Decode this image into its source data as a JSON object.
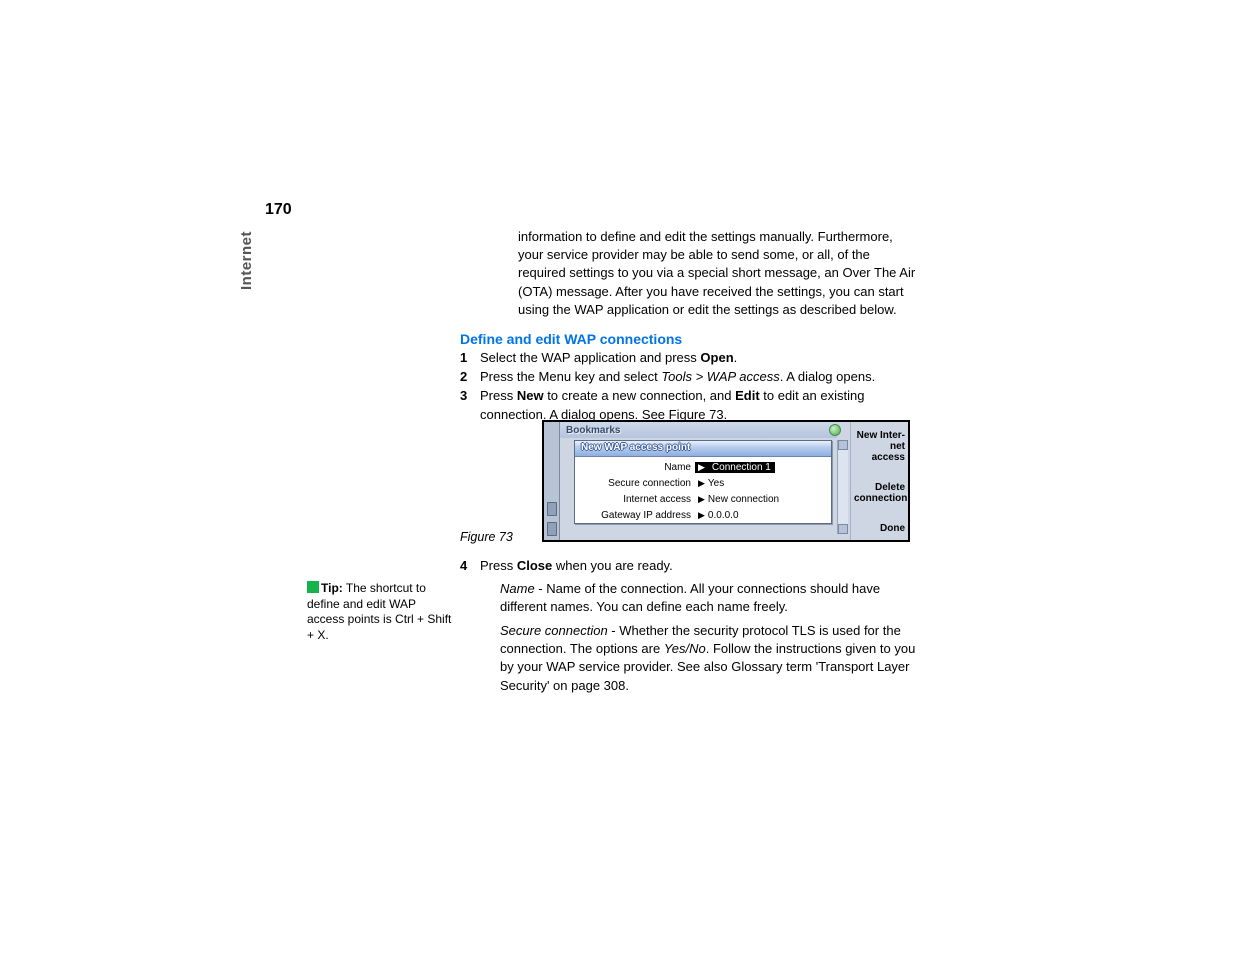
{
  "page_number": "170",
  "side_label": "Internet",
  "intro_paragraph": "information to define and edit the settings manually. Furthermore, your service provider may be able to send some, or all, of the required settings to you via a special short message, an Over The Air (OTA) message. After you have received the settings, you can start using the WAP application or edit the settings as described below.",
  "section_heading": "Define and edit WAP connections",
  "steps": {
    "s1_pre": "Select the WAP application and press ",
    "s1_bold": "Open",
    "s1_post": ".",
    "s2_pre": "Press the Menu key and select ",
    "s2_italic": "Tools > WAP access",
    "s2_post": ". A dialog opens.",
    "s3_pre": "Press ",
    "s3_bold1": "New",
    "s3_mid": " to create a new connection, and ",
    "s3_bold2": "Edit",
    "s3_post": " to edit an existing connection. A dialog opens. See Figure 73.",
    "s4_pre": "Press ",
    "s4_bold": "Close",
    "s4_post": " when you are ready."
  },
  "figure": {
    "caption": "Figure 73",
    "window_title": "Bookmarks",
    "dialog_title": "New WAP access point",
    "rows": [
      {
        "label": "Name",
        "value": "Connection 1",
        "selected": true
      },
      {
        "label": "Secure connection",
        "value": "Yes",
        "selected": false
      },
      {
        "label": "Internet access",
        "value": "New connection",
        "selected": false
      },
      {
        "label": "Gateway IP address",
        "value": "0.0.0.0",
        "selected": false
      }
    ],
    "buttons": {
      "b1": "New Inter-\nnet access",
      "b1_l1": "New Inter-",
      "b1_l2": "net access",
      "b2_l1": "Delete",
      "b2_l2": "connection",
      "b3": "Done"
    }
  },
  "defs": {
    "name_label": "Name",
    "name_text": " - Name of the connection. All your connections should have different names. You can define each name freely.",
    "secure_label": "Secure connection",
    "secure_text1": " - Whether the security protocol TLS is used for the connection. The options are ",
    "secure_opts": "Yes/No",
    "secure_text2": ". Follow the instructions given to you by your WAP service provider. See also Glossary term 'Transport Layer Security' on page 308."
  },
  "tip": {
    "label": "Tip:",
    "text": " The shortcut to define and edit WAP access points is Ctrl + Shift + X."
  },
  "colors": {
    "heading": "#0074E8",
    "tip_icon": "#16b24c"
  }
}
